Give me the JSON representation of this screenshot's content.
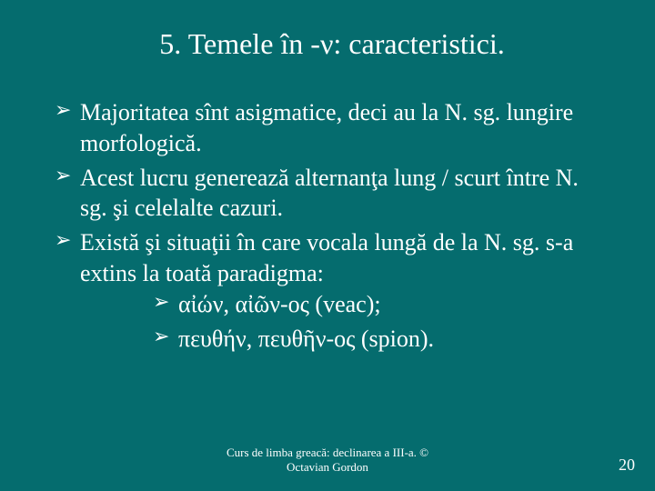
{
  "slide": {
    "title": "5. Temele în -ν: caracteristici.",
    "bullets": [
      "Majoritatea sînt asigmatice, deci au la N. sg. lungire morfologică.",
      "Acest lucru generează alternanţa lung / scurt între N. sg. şi celelalte cazuri.",
      "Există şi situaţii în care vocala lungă de la N. sg. s-a extins la toată paradigma:"
    ],
    "sub_bullets": [
      "αἰών, αἰῶν-ος (veac);",
      "πευθήν, πευθῆν-ος (spion)."
    ],
    "footer_line1": "Curs de limba greacă: declinarea a III-a. ©",
    "footer_line2": "Octavian Gordon",
    "page_number": "20"
  },
  "colors": {
    "background": "#056c6e",
    "text": "#ffffff"
  },
  "typography": {
    "title_fontsize": 32,
    "body_fontsize": 26,
    "footer_fontsize": 13,
    "font_family": "Times New Roman"
  }
}
